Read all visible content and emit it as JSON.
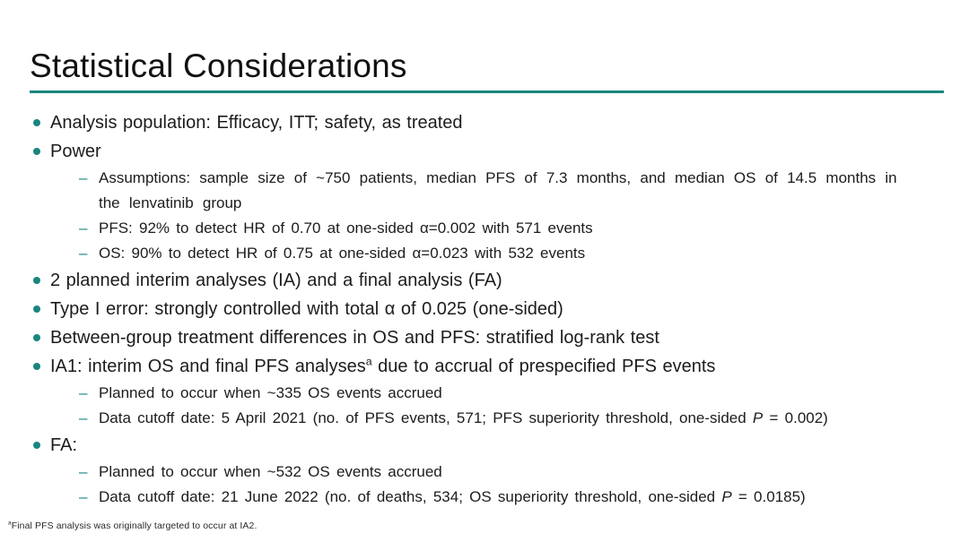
{
  "slide": {
    "title": "Statistical Considerations",
    "accent_color": "#18867F"
  },
  "bullets": [
    {
      "level": 1,
      "segments": [
        {
          "t": "Analysis population: Efficacy, ITT; safety, as treated"
        }
      ]
    },
    {
      "level": 1,
      "segments": [
        {
          "t": "Power"
        }
      ]
    },
    {
      "level": 2,
      "wrap": true,
      "segments": [
        {
          "t": "Assumptions: sample size of ~750 patients, median PFS of 7.3 months, and median OS of 14.5 months in"
        },
        {
          "br": true
        },
        {
          "t": "the lenvatinib group"
        }
      ]
    },
    {
      "level": 2,
      "segments": [
        {
          "t": "PFS: 92% to detect HR of 0.70 at one-sided α=0.002 with 571 events"
        }
      ]
    },
    {
      "level": 2,
      "segments": [
        {
          "t": "OS: 90% to detect HR of 0.75 at one-sided α=0.023 with 532 events"
        }
      ]
    },
    {
      "level": 1,
      "segments": [
        {
          "t": "2 planned interim analyses (IA) and a final analysis (FA)"
        }
      ]
    },
    {
      "level": 1,
      "segments": [
        {
          "t": "Type I error: strongly controlled with total α of 0.025 (one-sided)"
        }
      ]
    },
    {
      "level": 1,
      "segments": [
        {
          "t": "Between-group treatment differences in OS and PFS: stratified log-rank test"
        }
      ]
    },
    {
      "level": 1,
      "segments": [
        {
          "t": "IA1: interim OS and final PFS analyses"
        },
        {
          "t": "a",
          "sup": true
        },
        {
          "t": " due to accrual of prespecified PFS events"
        }
      ]
    },
    {
      "level": 2,
      "segments": [
        {
          "t": "Planned to occur when ~335 OS events accrued"
        }
      ]
    },
    {
      "level": 2,
      "segments": [
        {
          "t": "Data cutoff date: 5 April 2021 (no. of PFS events, 571; PFS superiority threshold, one-sided "
        },
        {
          "t": "P",
          "italic": true
        },
        {
          "t": " = 0.002)"
        }
      ]
    },
    {
      "level": 1,
      "segments": [
        {
          "t": "FA:"
        }
      ]
    },
    {
      "level": 2,
      "segments": [
        {
          "t": "Planned to occur when ~532 OS events accrued"
        }
      ]
    },
    {
      "level": 2,
      "segments": [
        {
          "t": "Data cutoff date: 21 June 2022 (no. of deaths, 534; OS superiority threshold, one-sided "
        },
        {
          "t": "P",
          "italic": true
        },
        {
          "t": " = 0.0185)"
        }
      ]
    }
  ],
  "footnote": {
    "segments": [
      {
        "t": "a",
        "sup": true
      },
      {
        "t": "Final PFS analysis was originally targeted to occur at IA2."
      }
    ]
  }
}
